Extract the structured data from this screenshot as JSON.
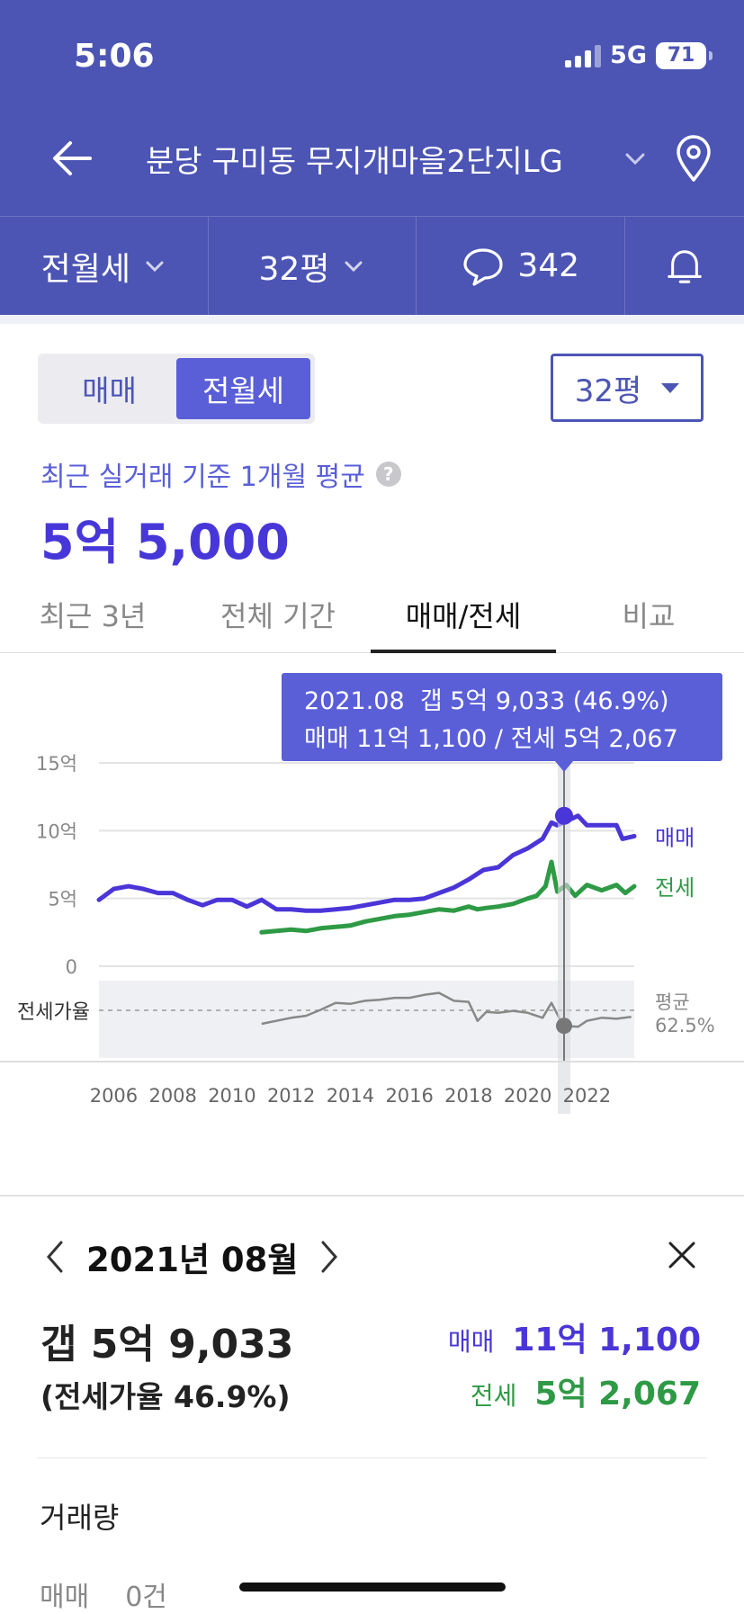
{
  "status_bar": {
    "time": "5:06",
    "network": "5G",
    "battery": "71"
  },
  "nav": {
    "title": "분당 구미동 무지개마을2단지LG"
  },
  "filters": [
    {
      "label": "전월세"
    },
    {
      "label": "32평"
    },
    {
      "label": "342"
    }
  ],
  "segment": {
    "options": [
      "매매",
      "전월세"
    ],
    "selected": "전월세"
  },
  "size_select": {
    "value": "32평"
  },
  "summary": {
    "label": "최근 실거래 기준 1개월 평균",
    "help": "?",
    "value": "5억 5,000"
  },
  "tabs": [
    {
      "label": "최근 3년"
    },
    {
      "label": "전체 기간"
    },
    {
      "label": "매매/전세",
      "active": true
    },
    {
      "label": "비교"
    }
  ],
  "tooltip": {
    "line1": "2021.08  갭 5억 9,033 (46.9%)",
    "line2": "매매 11억 1,100 / 전세 5억 2,067"
  },
  "chart_data": {
    "type": "line",
    "x_labels": [
      "2006",
      "2008",
      "2010",
      "2012",
      "2014",
      "2016",
      "2018",
      "2020",
      "2022"
    ],
    "y_labels": [
      "15억",
      "10억",
      "5억",
      "0"
    ],
    "ylim": [
      0,
      15
    ],
    "y_unit": "억",
    "series": [
      {
        "name": "매매",
        "color": "#4a35d8",
        "points": [
          [
            2005.5,
            4.9
          ],
          [
            2006.0,
            5.7
          ],
          [
            2006.5,
            5.9
          ],
          [
            2007.0,
            5.7
          ],
          [
            2007.5,
            5.4
          ],
          [
            2008.0,
            5.4
          ],
          [
            2008.5,
            4.9
          ],
          [
            2009.0,
            4.5
          ],
          [
            2009.5,
            4.9
          ],
          [
            2010.0,
            4.9
          ],
          [
            2010.5,
            4.4
          ],
          [
            2011.0,
            4.9
          ],
          [
            2011.5,
            4.2
          ],
          [
            2012.0,
            4.2
          ],
          [
            2012.5,
            4.1
          ],
          [
            2013.0,
            4.1
          ],
          [
            2013.5,
            4.2
          ],
          [
            2014.0,
            4.3
          ],
          [
            2014.5,
            4.5
          ],
          [
            2015.0,
            4.7
          ],
          [
            2015.5,
            4.9
          ],
          [
            2016.0,
            4.9
          ],
          [
            2016.5,
            5.0
          ],
          [
            2017.0,
            5.4
          ],
          [
            2017.5,
            5.8
          ],
          [
            2018.0,
            6.4
          ],
          [
            2018.5,
            7.1
          ],
          [
            2019.0,
            7.3
          ],
          [
            2019.5,
            8.2
          ],
          [
            2020.0,
            8.7
          ],
          [
            2020.5,
            9.4
          ],
          [
            2020.8,
            10.6
          ],
          [
            2021.0,
            10.4
          ],
          [
            2021.4,
            10.8
          ],
          [
            2021.7,
            11.1
          ],
          [
            2022.0,
            10.4
          ],
          [
            2022.5,
            10.4
          ],
          [
            2023.0,
            10.4
          ],
          [
            2023.2,
            9.4
          ],
          [
            2023.6,
            9.6
          ]
        ]
      },
      {
        "name": "전세",
        "color": "#2e9a45",
        "points": [
          [
            2011.0,
            2.5
          ],
          [
            2011.5,
            2.6
          ],
          [
            2012.0,
            2.7
          ],
          [
            2012.5,
            2.6
          ],
          [
            2013.0,
            2.8
          ],
          [
            2013.5,
            2.9
          ],
          [
            2014.0,
            3.0
          ],
          [
            2014.5,
            3.3
          ],
          [
            2015.0,
            3.5
          ],
          [
            2015.5,
            3.7
          ],
          [
            2016.0,
            3.8
          ],
          [
            2016.5,
            4.0
          ],
          [
            2017.0,
            4.2
          ],
          [
            2017.5,
            4.1
          ],
          [
            2018.0,
            4.4
          ],
          [
            2018.3,
            4.2
          ],
          [
            2018.6,
            4.3
          ],
          [
            2019.0,
            4.4
          ],
          [
            2019.5,
            4.6
          ],
          [
            2020.0,
            5.0
          ],
          [
            2020.3,
            5.2
          ],
          [
            2020.6,
            5.9
          ],
          [
            2020.8,
            7.7
          ],
          [
            2021.0,
            5.5
          ],
          [
            2021.3,
            6.0
          ],
          [
            2021.6,
            5.2
          ],
          [
            2022.0,
            6.0
          ],
          [
            2022.5,
            5.6
          ],
          [
            2023.0,
            6.0
          ],
          [
            2023.3,
            5.4
          ],
          [
            2023.6,
            5.9
          ]
        ]
      }
    ],
    "ratio_series": {
      "label": "전세가율",
      "average_label": "평균",
      "average_value": "62.5%",
      "points": [
        [
          2011.0,
          49
        ],
        [
          2012.0,
          55
        ],
        [
          2012.5,
          57
        ],
        [
          2013.0,
          63
        ],
        [
          2013.5,
          70
        ],
        [
          2014.0,
          69
        ],
        [
          2014.5,
          72
        ],
        [
          2015.0,
          73
        ],
        [
          2015.5,
          75
        ],
        [
          2016.0,
          75
        ],
        [
          2016.5,
          78
        ],
        [
          2017.0,
          80
        ],
        [
          2017.5,
          72
        ],
        [
          2018.0,
          71
        ],
        [
          2018.3,
          52
        ],
        [
          2018.6,
          61
        ],
        [
          2019.0,
          60
        ],
        [
          2019.5,
          62
        ],
        [
          2020.0,
          60
        ],
        [
          2020.5,
          55
        ],
        [
          2020.8,
          70
        ],
        [
          2021.2,
          47
        ],
        [
          2021.7,
          46
        ],
        [
          2022.0,
          52
        ],
        [
          2022.5,
          55
        ],
        [
          2023.0,
          54
        ],
        [
          2023.5,
          56
        ]
      ]
    },
    "highlight": {
      "x": 2021.7,
      "sale": 11.1,
      "lease": 5.2
    }
  },
  "detail": {
    "month": "2021년 08월",
    "gap": "갭 5억 9,033",
    "ratio": "(전세가율 46.9%)",
    "sale_label": "매매",
    "sale_value": "11억 1,100",
    "lease_label": "전세",
    "lease_value": "5억 2,067",
    "volume_title": "거래량",
    "volume_row_label": "매매",
    "volume_row_value": "0건"
  },
  "colors": {
    "header": "#4c55b4",
    "accent": "#4a35d8",
    "lease": "#2e9a45",
    "ratio": "#888888"
  }
}
